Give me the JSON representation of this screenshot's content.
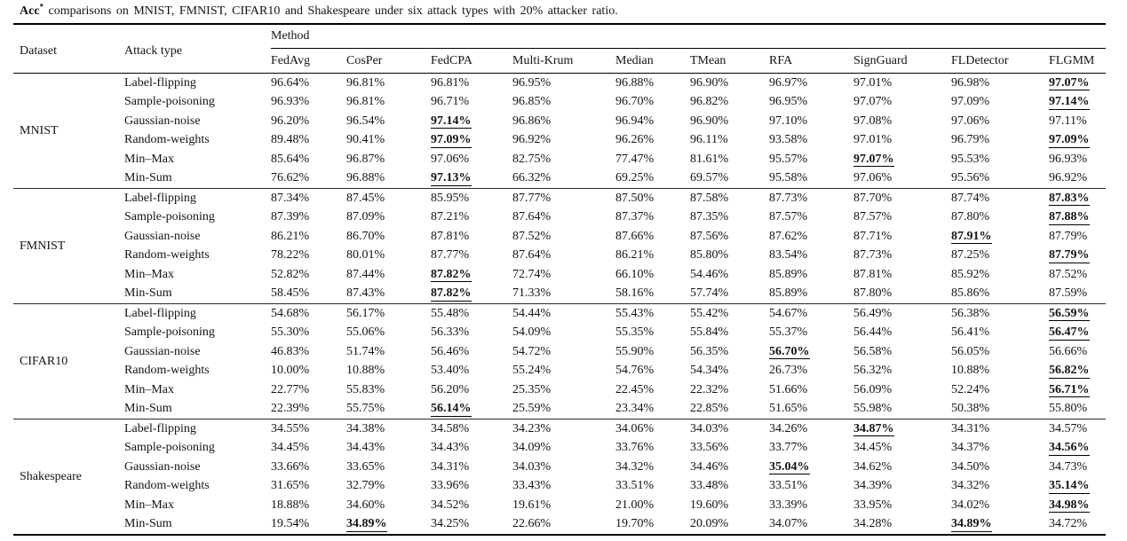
{
  "caption": {
    "acc": "Acc",
    "sup": "*",
    "text": " comparisons on MNIST, FMNIST, CIFAR10 and Shakespeare under six attack types with 20% attacker ratio."
  },
  "table": {
    "dataset_header": "Dataset",
    "attack_header": "Attack type",
    "method_header": "Method",
    "methods": [
      "FedAvg",
      "CosPer",
      "FedCPA",
      "Multi-Krum",
      "Median",
      "TMean",
      "RFA",
      "SignGuard",
      "FLDetector",
      "FLGMM"
    ],
    "datasets": [
      {
        "name": "MNIST",
        "rows": [
          {
            "attack": "Label-flipping",
            "values": [
              "96.64%",
              "96.81%",
              "96.81%",
              "96.95%",
              "96.88%",
              "96.90%",
              "96.97%",
              "97.01%",
              "96.98%",
              "97.07%"
            ],
            "best": [
              9
            ]
          },
          {
            "attack": "Sample-poisoning",
            "values": [
              "96.93%",
              "96.81%",
              "96.71%",
              "96.85%",
              "96.70%",
              "96.82%",
              "96.95%",
              "97.07%",
              "97.09%",
              "97.14%"
            ],
            "best": [
              9
            ]
          },
          {
            "attack": "Gaussian-noise",
            "values": [
              "96.20%",
              "96.54%",
              "97.14%",
              "96.86%",
              "96.94%",
              "96.90%",
              "97.10%",
              "97.08%",
              "97.06%",
              "97.11%"
            ],
            "best": [
              2
            ]
          },
          {
            "attack": "Random-weights",
            "values": [
              "89.48%",
              "90.41%",
              "97.09%",
              "96.92%",
              "96.26%",
              "96.11%",
              "93.58%",
              "97.01%",
              "96.79%",
              "97.09%"
            ],
            "best": [
              2,
              9
            ]
          },
          {
            "attack": "Min–Max",
            "values": [
              "85.64%",
              "96.87%",
              "97.06%",
              "82.75%",
              "77.47%",
              "81.61%",
              "95.57%",
              "97.07%",
              "95.53%",
              "96.93%"
            ],
            "best": [
              7
            ]
          },
          {
            "attack": "Min-Sum",
            "values": [
              "76.62%",
              "96.88%",
              "97.13%",
              "66.32%",
              "69.25%",
              "69.57%",
              "95.58%",
              "97.06%",
              "95.56%",
              "96.92%"
            ],
            "best": [
              2
            ]
          }
        ]
      },
      {
        "name": "FMNIST",
        "rows": [
          {
            "attack": "Label-flipping",
            "values": [
              "87.34%",
              "87.45%",
              "85.95%",
              "87.77%",
              "87.50%",
              "87.58%",
              "87.73%",
              "87.70%",
              "87.74%",
              "87.83%"
            ],
            "best": [
              9
            ]
          },
          {
            "attack": "Sample-poisoning",
            "values": [
              "87.39%",
              "87.09%",
              "87.21%",
              "87.64%",
              "87.37%",
              "87.35%",
              "87.57%",
              "87.57%",
              "87.80%",
              "87.88%"
            ],
            "best": [
              9
            ]
          },
          {
            "attack": "Gaussian-noise",
            "values": [
              "86.21%",
              "86.70%",
              "87.81%",
              "87.52%",
              "87.66%",
              "87.56%",
              "87.62%",
              "87.71%",
              "87.91%",
              "87.79%"
            ],
            "best": [
              8
            ]
          },
          {
            "attack": "Random-weights",
            "values": [
              "78.22%",
              "80.01%",
              "87.77%",
              "87.64%",
              "86.21%",
              "85.80%",
              "83.54%",
              "87.73%",
              "87.25%",
              "87.79%"
            ],
            "best": [
              9
            ]
          },
          {
            "attack": "Min–Max",
            "values": [
              "52.82%",
              "87.44%",
              "87.82%",
              "72.74%",
              "66.10%",
              "54.46%",
              "85.89%",
              "87.81%",
              "85.92%",
              "87.52%"
            ],
            "best": [
              2
            ]
          },
          {
            "attack": "Min-Sum",
            "values": [
              "58.45%",
              "87.43%",
              "87.82%",
              "71.33%",
              "58.16%",
              "57.74%",
              "85.89%",
              "87.80%",
              "85.86%",
              "87.59%"
            ],
            "best": [
              2
            ]
          }
        ]
      },
      {
        "name": "CIFAR10",
        "rows": [
          {
            "attack": "Label-flipping",
            "values": [
              "54.68%",
              "56.17%",
              "55.48%",
              "54.44%",
              "55.43%",
              "55.42%",
              "54.67%",
              "56.49%",
              "56.38%",
              "56.59%"
            ],
            "best": [
              9
            ]
          },
          {
            "attack": "Sample-poisoning",
            "values": [
              "55.30%",
              "55.06%",
              "56.33%",
              "54.09%",
              "55.35%",
              "55.84%",
              "55.37%",
              "56.44%",
              "56.41%",
              "56.47%"
            ],
            "best": [
              9
            ]
          },
          {
            "attack": "Gaussian-noise",
            "values": [
              "46.83%",
              "51.74%",
              "56.46%",
              "54.72%",
              "55.90%",
              "56.35%",
              "56.70%",
              "56.58%",
              "56.05%",
              "56.66%"
            ],
            "best": [
              6
            ]
          },
          {
            "attack": "Random-weights",
            "values": [
              "10.00%",
              "10.88%",
              "53.40%",
              "55.24%",
              "54.76%",
              "54.34%",
              "26.73%",
              "56.32%",
              "10.88%",
              "56.82%"
            ],
            "best": [
              9
            ]
          },
          {
            "attack": "Min–Max",
            "values": [
              "22.77%",
              "55.83%",
              "56.20%",
              "25.35%",
              "22.45%",
              "22.32%",
              "51.66%",
              "56.09%",
              "52.24%",
              "56.71%"
            ],
            "best": [
              9
            ]
          },
          {
            "attack": "Min-Sum",
            "values": [
              "22.39%",
              "55.75%",
              "56.14%",
              "25.59%",
              "23.34%",
              "22.85%",
              "51.65%",
              "55.98%",
              "50.38%",
              "55.80%"
            ],
            "best": [
              2
            ]
          }
        ]
      },
      {
        "name": "Shakespeare",
        "rows": [
          {
            "attack": "Label-flipping",
            "values": [
              "34.55%",
              "34.38%",
              "34.58%",
              "34.23%",
              "34.06%",
              "34.03%",
              "34.26%",
              "34.87%",
              "34.31%",
              "34.57%"
            ],
            "best": [
              7
            ]
          },
          {
            "attack": "Sample-poisoning",
            "values": [
              "34.45%",
              "34.43%",
              "34.43%",
              "34.09%",
              "33.76%",
              "33.56%",
              "33.77%",
              "34.45%",
              "34.37%",
              "34.56%"
            ],
            "best": [
              9
            ]
          },
          {
            "attack": "Gaussian-noise",
            "values": [
              "33.66%",
              "33.65%",
              "34.31%",
              "34.03%",
              "34.32%",
              "34.46%",
              "35.04%",
              "34.62%",
              "34.50%",
              "34.73%"
            ],
            "best": [
              6
            ]
          },
          {
            "attack": "Random-weights",
            "values": [
              "31.65%",
              "32.79%",
              "33.96%",
              "33.43%",
              "33.51%",
              "33.48%",
              "33.51%",
              "34.39%",
              "34.32%",
              "35.14%"
            ],
            "best": [
              9
            ]
          },
          {
            "attack": "Min–Max",
            "values": [
              "18.88%",
              "34.60%",
              "34.52%",
              "19.61%",
              "21.00%",
              "19.60%",
              "33.39%",
              "33.95%",
              "34.02%",
              "34.98%"
            ],
            "best": [
              9
            ]
          },
          {
            "attack": "Min-Sum",
            "values": [
              "19.54%",
              "34.89%",
              "34.25%",
              "22.66%",
              "19.70%",
              "20.09%",
              "34.07%",
              "34.28%",
              "34.89%",
              "34.72%"
            ],
            "best": [
              1,
              8
            ]
          }
        ]
      }
    ]
  }
}
